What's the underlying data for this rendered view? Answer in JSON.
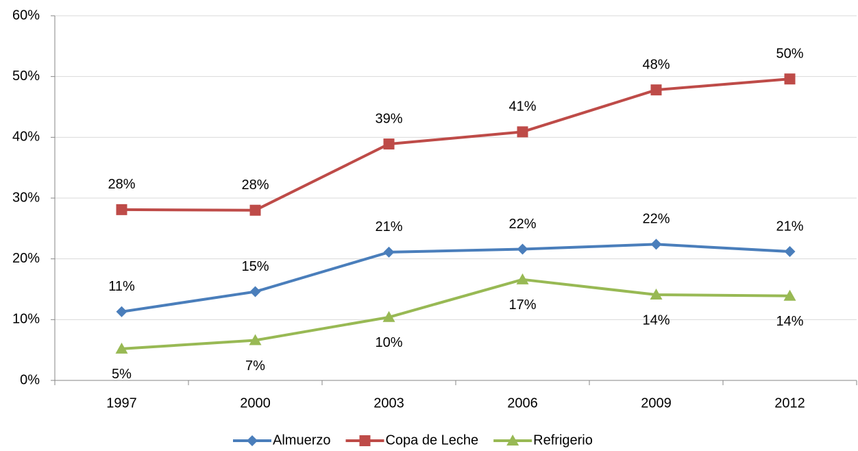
{
  "chart_data": {
    "type": "line",
    "categories": [
      "1997",
      "2000",
      "2003",
      "2006",
      "2009",
      "2012"
    ],
    "series": [
      {
        "name": "Almuerzo",
        "color": "#4a7ebb",
        "values": [
          11.3,
          14.6,
          21.1,
          21.6,
          22.4,
          21.2
        ],
        "value_labels": [
          "11%",
          "15%",
          "21%",
          "22%",
          "22%",
          "21%"
        ]
      },
      {
        "name": "Copa de Leche",
        "color": "#be4b48",
        "values": [
          28.1,
          28.0,
          38.9,
          40.9,
          47.8,
          49.6
        ],
        "value_labels": [
          "28%",
          "28%",
          "39%",
          "41%",
          "48%",
          "50%"
        ]
      },
      {
        "name": "Refrigerio",
        "color": "#98b954",
        "values": [
          5.2,
          6.6,
          10.4,
          16.6,
          14.1,
          13.9
        ],
        "value_labels": [
          "5%",
          "7%",
          "10%",
          "17%",
          "14%",
          "14%"
        ]
      }
    ],
    "ylim": [
      0,
      60
    ],
    "yticks": [
      {
        "value": 0,
        "label": "0%"
      },
      {
        "value": 10,
        "label": "10%"
      },
      {
        "value": 20,
        "label": "20%"
      },
      {
        "value": 30,
        "label": "30%"
      },
      {
        "value": 40,
        "label": "40%"
      },
      {
        "value": 50,
        "label": "50%"
      },
      {
        "value": 60,
        "label": "60%"
      }
    ],
    "grid": true,
    "legend": "bottom"
  }
}
